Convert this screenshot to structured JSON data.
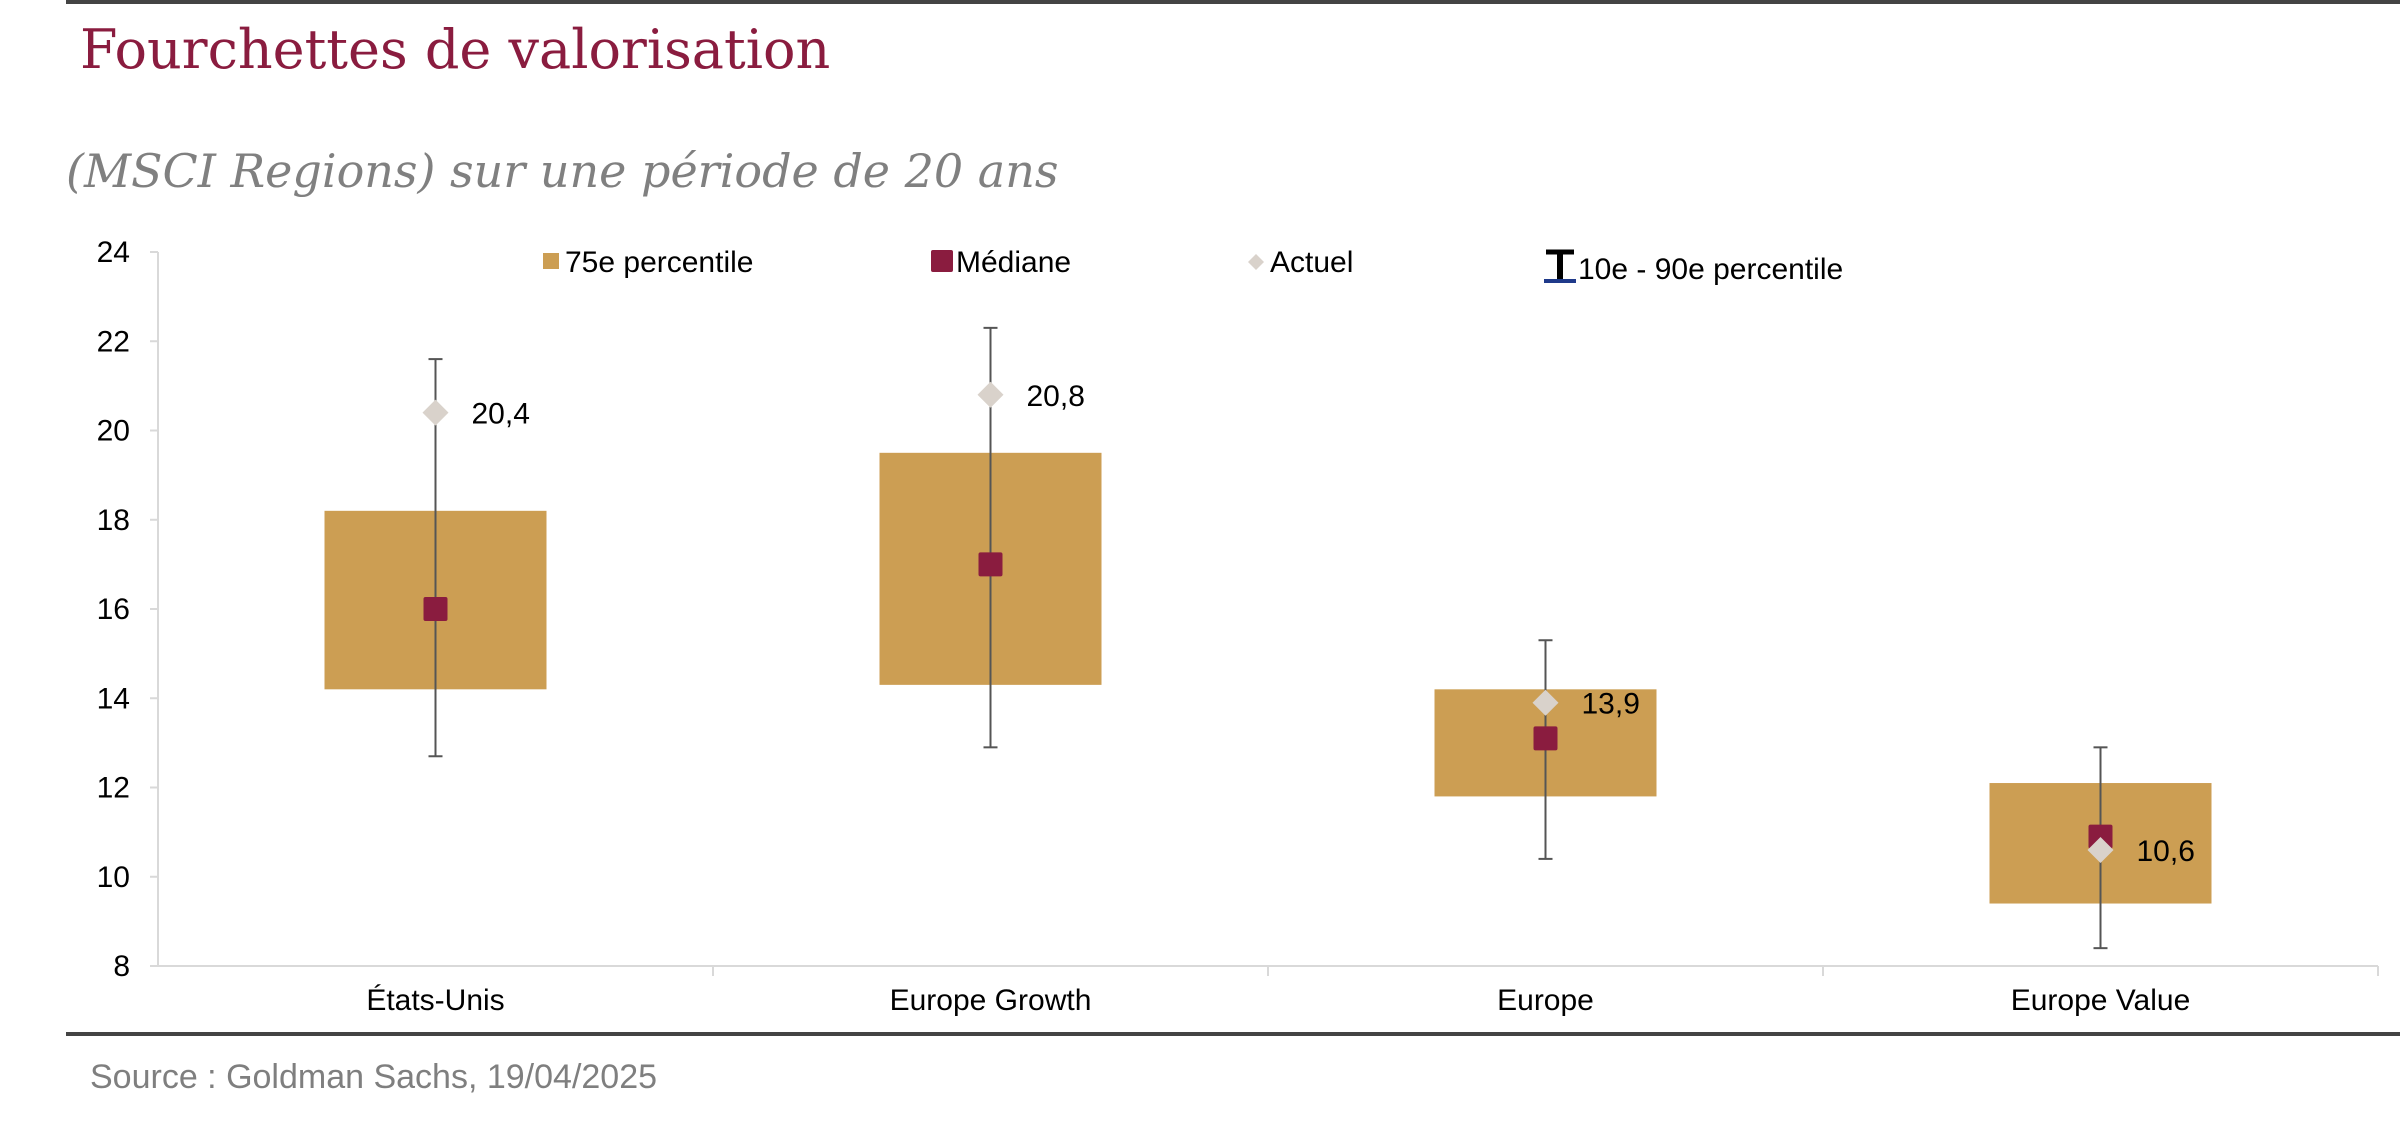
{
  "header": {
    "title": "Fourchettes de valorisation",
    "subtitle": "(MSCI Regions) sur une période de 20 ans"
  },
  "footer": {
    "source": "Source : Goldman Sachs, 19/04/2025"
  },
  "colors": {
    "box": "#cc9e53",
    "median": "#8a1c3f",
    "current": "#d9d2cb",
    "whisker": "#555555",
    "legend_whisker_accent": "#1f3a8a",
    "title": "#8a1c3f",
    "axis": "#d9d9d9"
  },
  "chart_data": {
    "type": "box-range",
    "categories": [
      "États-Unis",
      "Europe Growth",
      "Europe",
      "Europe Value"
    ],
    "ylim": [
      8,
      24
    ],
    "yticks": [
      8,
      10,
      12,
      14,
      16,
      18,
      20,
      22,
      24
    ],
    "ytick_labels": [
      "8",
      "10",
      "12",
      "14",
      "16",
      "18",
      "20",
      "22",
      "24"
    ],
    "grid": false,
    "legend": {
      "placement": "top",
      "entries": [
        "75e percentile",
        "Médiane",
        "Actuel",
        "10e - 90e percentile"
      ]
    },
    "series": [
      {
        "name": "75e percentile",
        "kind": "box",
        "low": [
          14.2,
          14.3,
          11.8,
          9.4
        ],
        "high": [
          18.2,
          19.5,
          14.2,
          12.1
        ]
      },
      {
        "name": "Médiane",
        "kind": "marker-square",
        "values": [
          16.0,
          17.0,
          13.1,
          10.9
        ]
      },
      {
        "name": "Actuel",
        "kind": "marker-diamond",
        "values": [
          20.4,
          20.8,
          13.9,
          10.6
        ],
        "labels": [
          "20,4",
          "20,8",
          "13,9",
          "10,6"
        ]
      },
      {
        "name": "10e - 90e percentile",
        "kind": "whisker",
        "low": [
          12.7,
          12.9,
          10.4,
          8.4
        ],
        "high": [
          21.6,
          22.3,
          15.3,
          12.9
        ]
      }
    ]
  }
}
